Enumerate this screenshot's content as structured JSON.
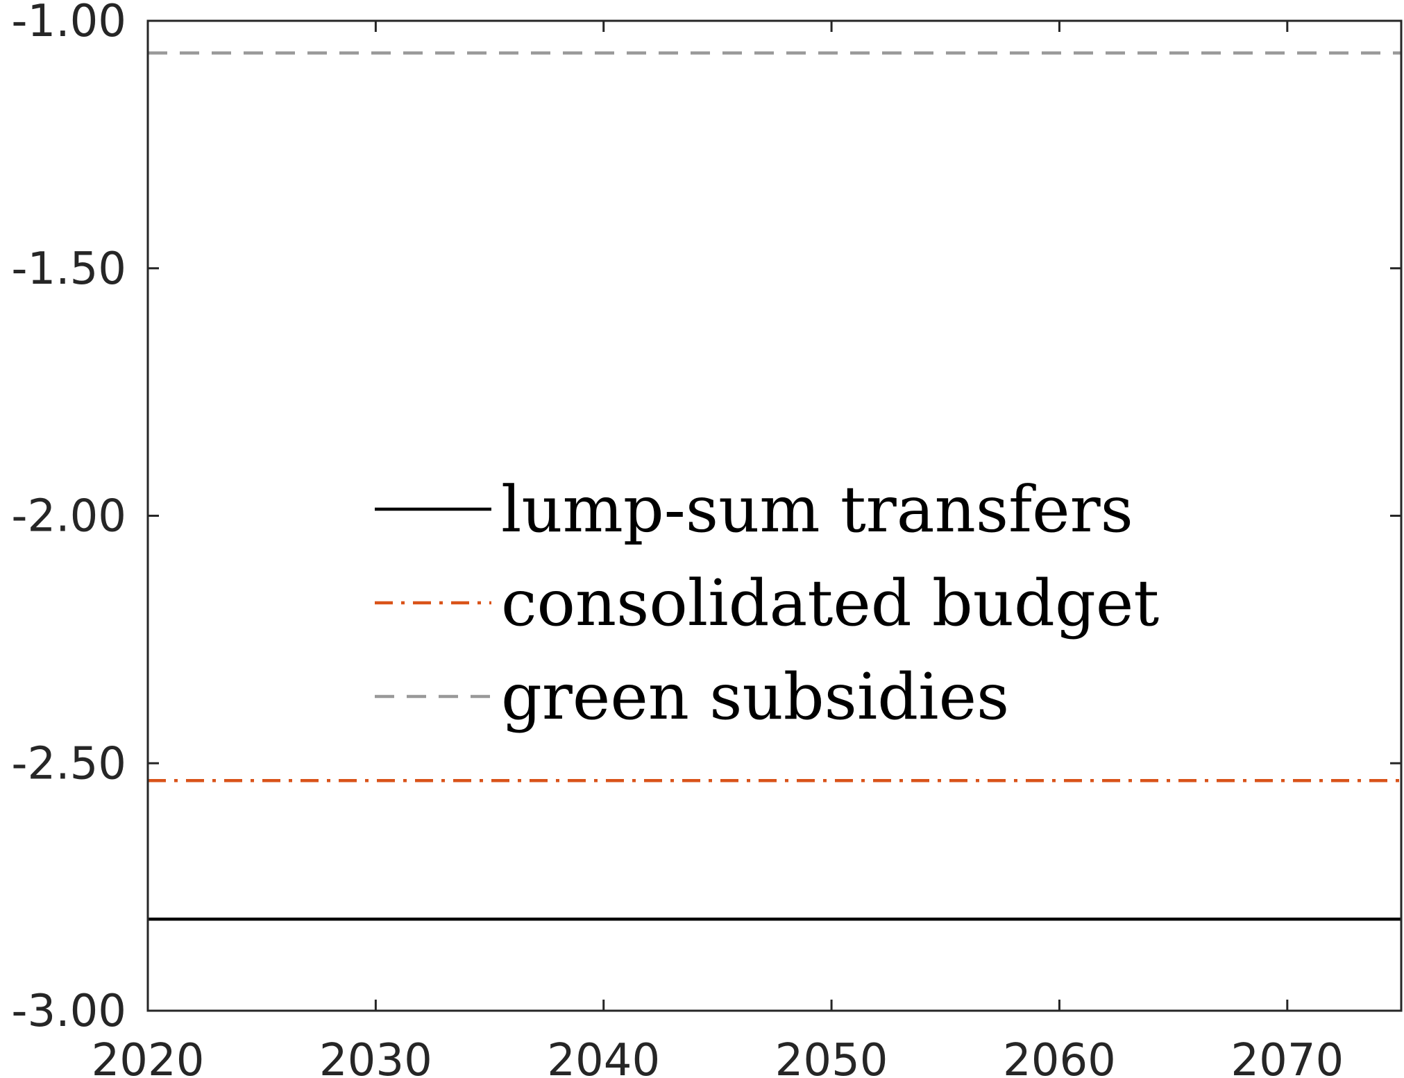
{
  "chart_data": {
    "type": "line",
    "title": "",
    "xlabel": "",
    "ylabel": "",
    "xlim": [
      2020,
      2075
    ],
    "ylim": [
      -3.0,
      -1.0
    ],
    "x_ticks": [
      2020,
      2030,
      2040,
      2050,
      2060,
      2070
    ],
    "x_tick_labels": [
      "2020",
      "2030",
      "2040",
      "2050",
      "2060",
      "2070"
    ],
    "y_ticks": [
      -3.0,
      -2.5,
      -2.0,
      -1.5,
      -1.0
    ],
    "y_tick_labels": [
      "-3.00",
      "-2.50",
      "-2.00",
      "-1.50",
      "-1.00"
    ],
    "grid": false,
    "legend_position": "center",
    "series": [
      {
        "name": "lump-sum transfers",
        "color": "#000000",
        "style": "solid",
        "x": [
          2020,
          2075
        ],
        "y": [
          -2.815,
          -2.815
        ]
      },
      {
        "name": "consolidated budget",
        "color": "#D95319",
        "style": "dash-dot",
        "x": [
          2020,
          2075
        ],
        "y": [
          -2.535,
          -2.535
        ]
      },
      {
        "name": "green subsidies",
        "color": "#999999",
        "style": "dashed",
        "x": [
          2020,
          2075
        ],
        "y": [
          -1.065,
          -1.065
        ]
      }
    ]
  }
}
